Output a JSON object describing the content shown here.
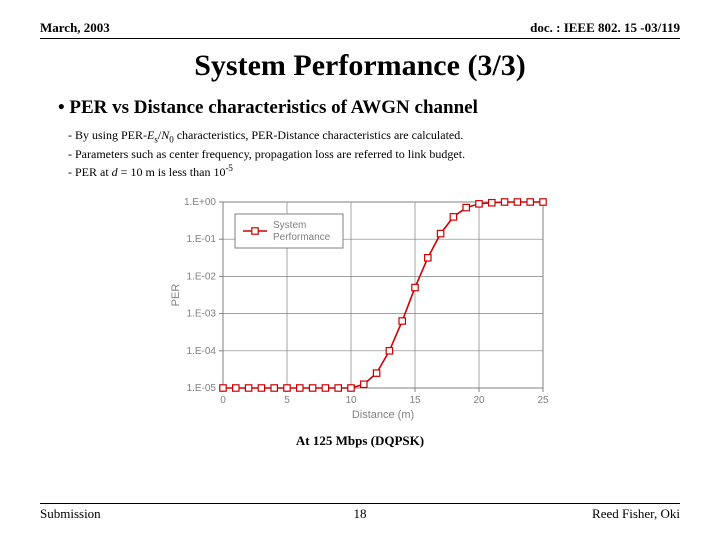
{
  "header": {
    "left": "March, 2003",
    "right": "doc. : IEEE 802. 15 -03/119"
  },
  "title": "System Performance (3/3)",
  "bullet": "PER vs Distance characteristics of AWGN channel",
  "subs": {
    "a_pre": "By using PER-",
    "a_es": "E",
    "a_s": "s",
    "a_slash": "/",
    "a_n": "N",
    "a_0": "0",
    "a_post": " characteristics, PER-Distance characteristics are calculated.",
    "b": "Parameters such as center frequency, propagation loss are referred to link budget.",
    "c_pre": "PER at ",
    "c_d": "d",
    "c_mid": " = 10 m is less than 10",
    "c_exp": "-5"
  },
  "caption": "At 125 Mbps (DQPSK)",
  "footer": {
    "left": "Submission",
    "page": "18",
    "right": "Reed Fisher, Oki"
  },
  "chart": {
    "type": "line",
    "xlabel": "Distance (m)",
    "ylabel": "PER",
    "x_ticks": [
      0,
      5,
      10,
      15,
      20,
      25
    ],
    "y_ticks_labels": [
      "1.E+00",
      "1.E-01",
      "1.E-02",
      "1.E-03",
      "1.E-04",
      "1.E-05"
    ],
    "y_exps": [
      0,
      -1,
      -2,
      -3,
      -4,
      -5
    ],
    "xlim": [
      0,
      25
    ],
    "ylim_exp": [
      -5,
      0
    ],
    "series_label_l1": "System",
    "series_label_l2": "Performance",
    "series_color": "#d00000",
    "marker_fill": "#ffffff",
    "marker_size": 3.2,
    "line_width": 1.6,
    "grid_color": "#808080",
    "border_color": "#808080",
    "axis_text_color": "#808080",
    "background_color": "#ffffff",
    "label_fontsize": 11,
    "tick_fontsize": 10,
    "legend_fontsize": 10,
    "legend_box_color": "#808080",
    "data": [
      {
        "x": 0,
        "y": -5
      },
      {
        "x": 1,
        "y": -5
      },
      {
        "x": 2,
        "y": -5
      },
      {
        "x": 3,
        "y": -5
      },
      {
        "x": 4,
        "y": -5
      },
      {
        "x": 5,
        "y": -5
      },
      {
        "x": 6,
        "y": -5
      },
      {
        "x": 7,
        "y": -5
      },
      {
        "x": 8,
        "y": -5
      },
      {
        "x": 9,
        "y": -5
      },
      {
        "x": 10,
        "y": -5
      },
      {
        "x": 11,
        "y": -4.9
      },
      {
        "x": 12,
        "y": -4.6
      },
      {
        "x": 13,
        "y": -4.0
      },
      {
        "x": 14,
        "y": -3.2
      },
      {
        "x": 15,
        "y": -2.3
      },
      {
        "x": 16,
        "y": -1.5
      },
      {
        "x": 17,
        "y": -0.85
      },
      {
        "x": 18,
        "y": -0.4
      },
      {
        "x": 19,
        "y": -0.15
      },
      {
        "x": 20,
        "y": -0.05
      },
      {
        "x": 21,
        "y": -0.02
      },
      {
        "x": 22,
        "y": 0
      },
      {
        "x": 23,
        "y": 0
      },
      {
        "x": 24,
        "y": 0
      },
      {
        "x": 25,
        "y": 0
      }
    ]
  }
}
